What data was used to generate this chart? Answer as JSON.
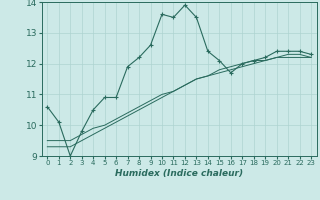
{
  "xlabel": "Humidex (Indice chaleur)",
  "ylabel": "",
  "xlim": [
    -0.5,
    23.5
  ],
  "ylim": [
    9,
    14
  ],
  "yticks": [
    9,
    10,
    11,
    12,
    13,
    14
  ],
  "xticks": [
    0,
    1,
    2,
    3,
    4,
    5,
    6,
    7,
    8,
    9,
    10,
    11,
    12,
    13,
    14,
    15,
    16,
    17,
    18,
    19,
    20,
    21,
    22,
    23
  ],
  "bg_color": "#cce9e7",
  "grid_color": "#aed4d1",
  "line_color": "#2a6b5e",
  "line1_x": [
    0,
    1,
    2,
    3,
    4,
    5,
    6,
    7,
    8,
    9,
    10,
    11,
    12,
    13,
    14,
    15,
    16,
    17,
    18,
    19,
    20,
    21,
    22,
    23
  ],
  "line1_y": [
    10.6,
    10.1,
    9.0,
    9.8,
    10.5,
    10.9,
    10.9,
    11.9,
    12.2,
    12.6,
    13.6,
    13.5,
    13.9,
    13.5,
    12.4,
    12.1,
    11.7,
    12.0,
    12.1,
    12.2,
    12.4,
    12.4,
    12.4,
    12.3
  ],
  "line2_x": [
    0,
    1,
    2,
    3,
    4,
    5,
    6,
    7,
    8,
    9,
    10,
    11,
    12,
    13,
    14,
    15,
    16,
    17,
    18,
    19,
    20,
    21,
    22,
    23
  ],
  "line2_y": [
    9.3,
    9.3,
    9.3,
    9.5,
    9.7,
    9.9,
    10.1,
    10.3,
    10.5,
    10.7,
    10.9,
    11.1,
    11.3,
    11.5,
    11.6,
    11.7,
    11.8,
    11.9,
    12.0,
    12.1,
    12.2,
    12.2,
    12.2,
    12.2
  ],
  "line3_x": [
    0,
    1,
    2,
    3,
    4,
    5,
    6,
    7,
    8,
    9,
    10,
    11,
    12,
    13,
    14,
    15,
    16,
    17,
    18,
    19,
    20,
    21,
    22,
    23
  ],
  "line3_y": [
    9.5,
    9.5,
    9.5,
    9.7,
    9.9,
    10.0,
    10.2,
    10.4,
    10.6,
    10.8,
    11.0,
    11.1,
    11.3,
    11.5,
    11.6,
    11.8,
    11.9,
    12.0,
    12.1,
    12.1,
    12.2,
    12.3,
    12.3,
    12.2
  ]
}
